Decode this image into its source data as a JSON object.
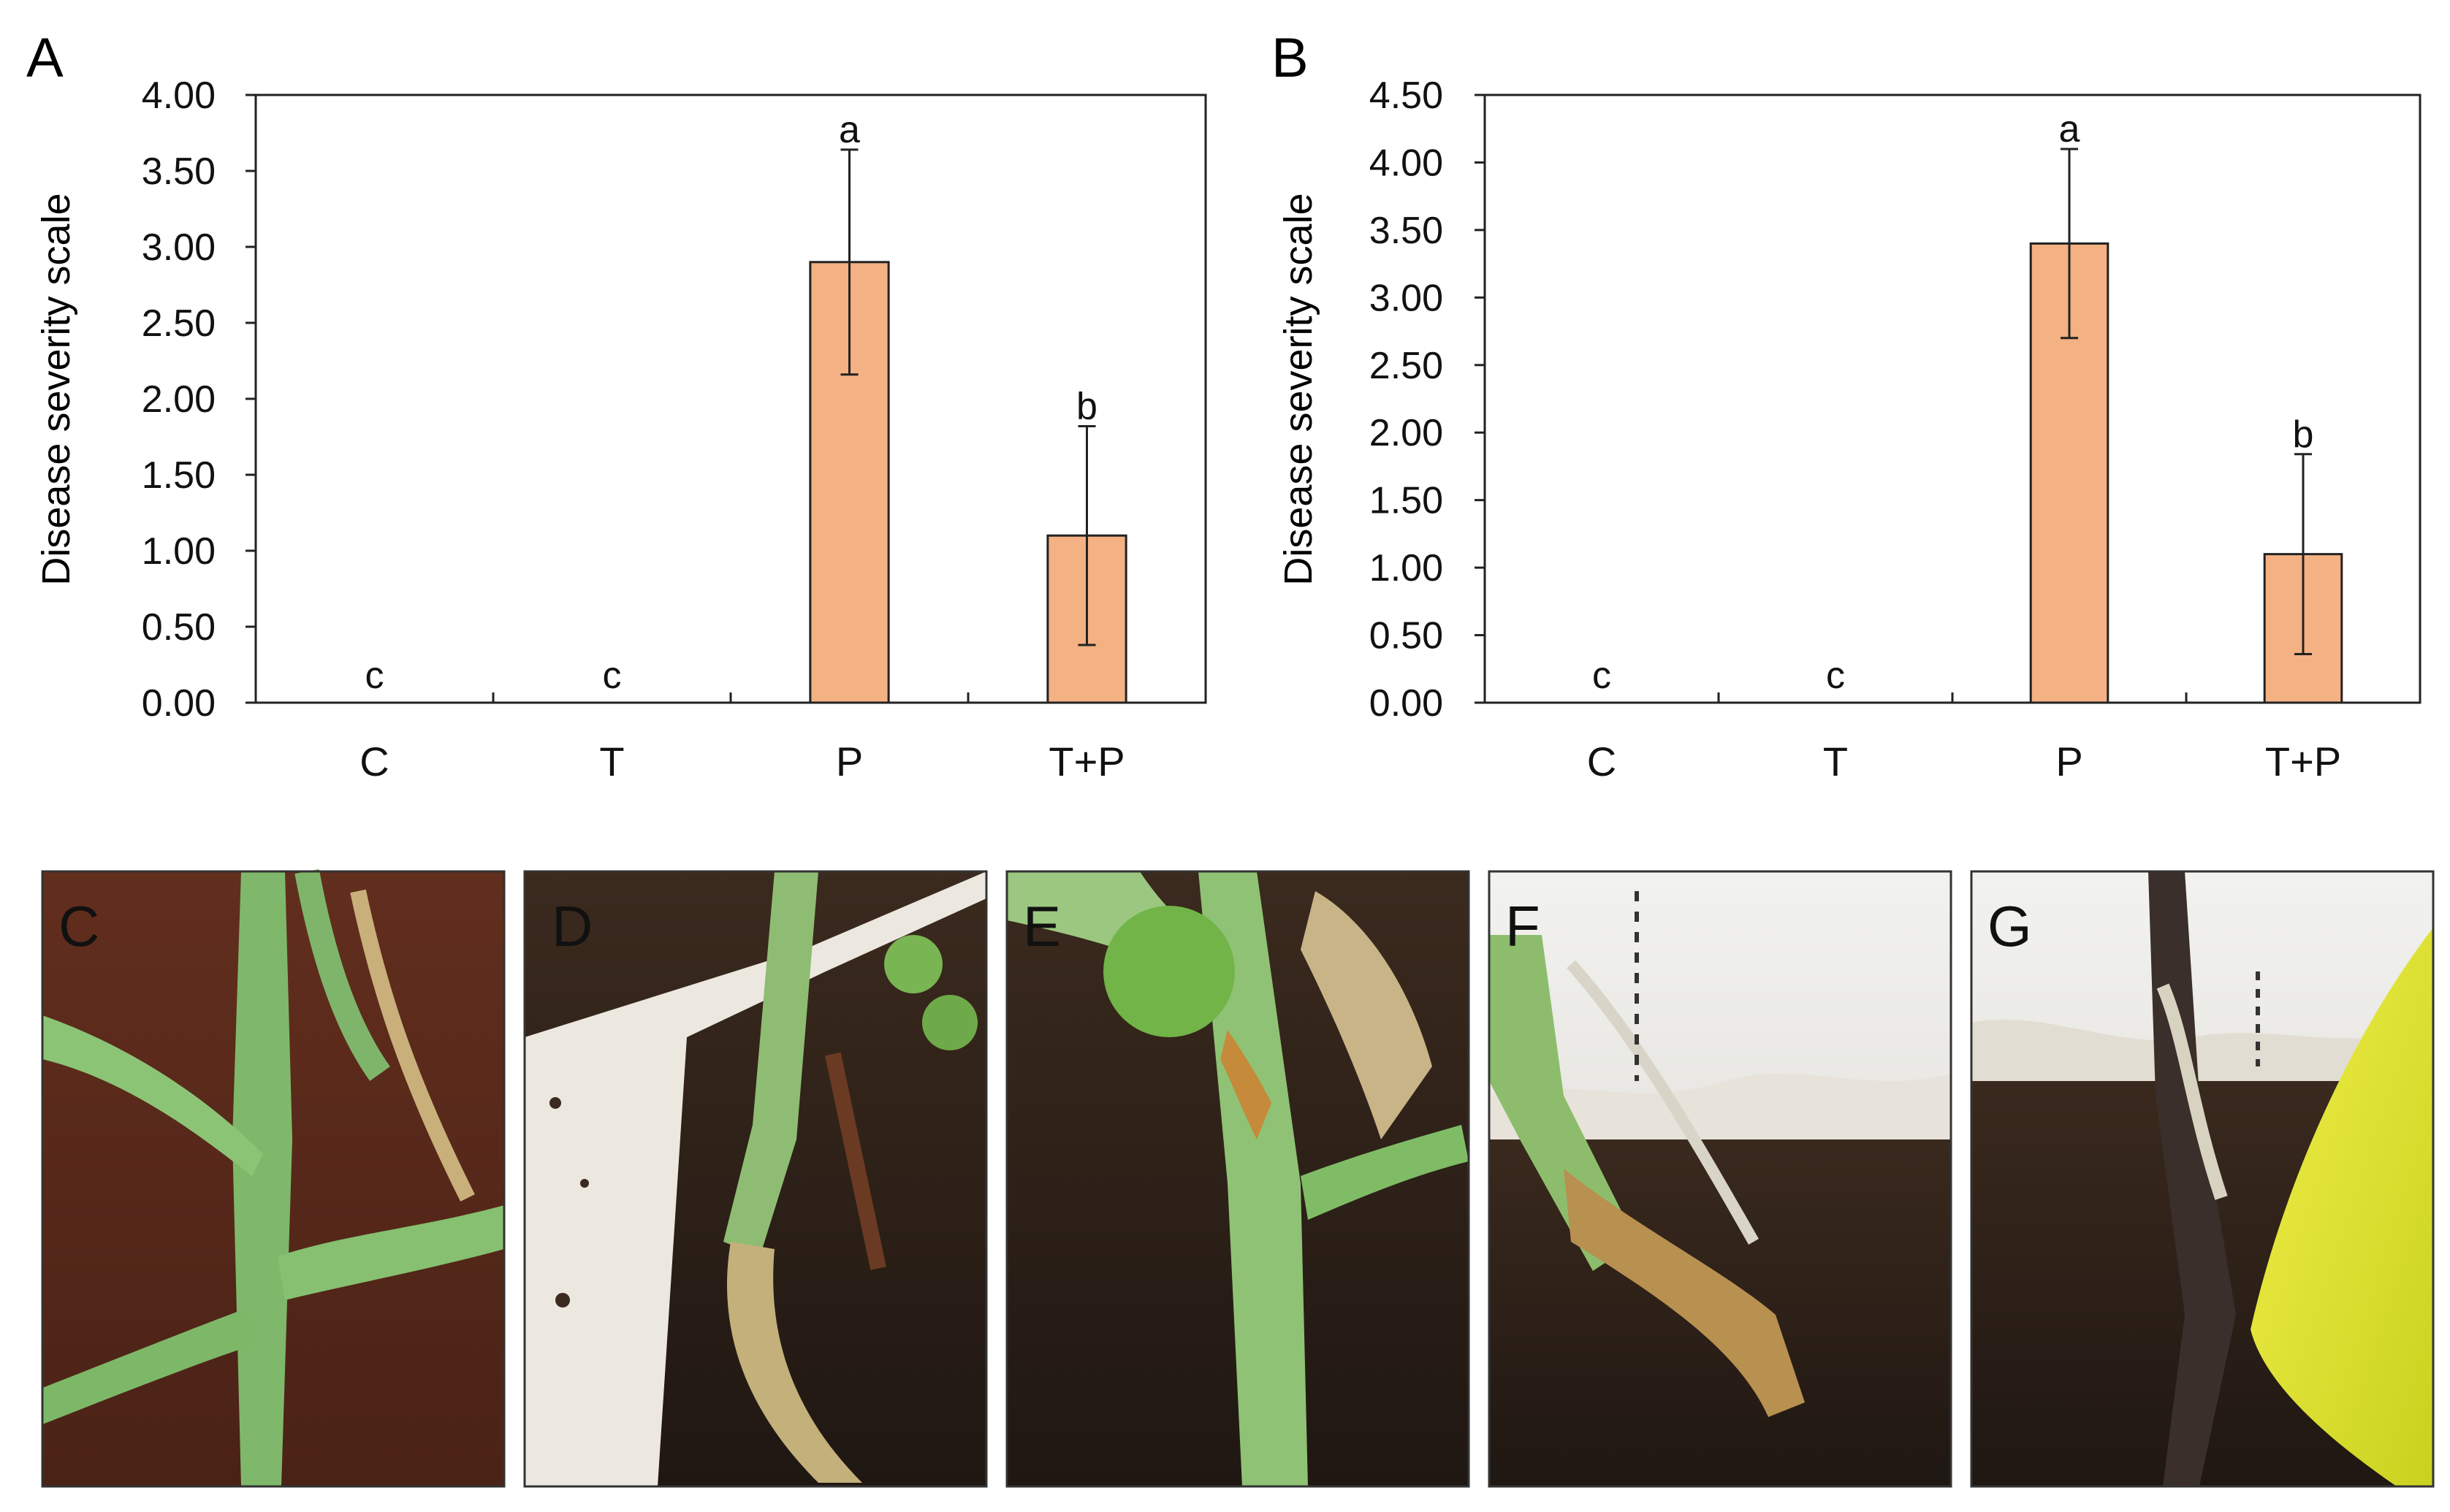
{
  "chart_data": [
    {
      "panel": "A",
      "type": "bar",
      "ylabel": "Disease severity scale",
      "xlabel": "",
      "categories": [
        "C",
        "T",
        "P",
        "T+P"
      ],
      "values": [
        0,
        0,
        2.9,
        1.1
      ],
      "errors": [
        0,
        0,
        0.74,
        0.72
      ],
      "significance": [
        "c",
        "c",
        "a",
        "b"
      ],
      "ylim": [
        0,
        4.0
      ],
      "ytick_values": [
        0,
        0.5,
        1.0,
        1.5,
        2.0,
        2.5,
        3.0,
        3.5,
        4.0
      ],
      "ytick_labels": [
        "0.00",
        "0.50",
        "1.00",
        "1.50",
        "2.00",
        "2.50",
        "3.00",
        "3.50",
        "4.00"
      ],
      "bar_color": "#f4b183",
      "grid": false
    },
    {
      "panel": "B",
      "type": "bar",
      "ylabel": "Disease severity scale",
      "xlabel": "",
      "categories": [
        "C",
        "T",
        "P",
        "T+P"
      ],
      "values": [
        0,
        0,
        3.4,
        1.1
      ],
      "errors": [
        0,
        0,
        0.7,
        0.74
      ],
      "significance": [
        "c",
        "c",
        "a",
        "b"
      ],
      "ylim": [
        0,
        4.5
      ],
      "ytick_values": [
        0,
        0.5,
        1.0,
        1.5,
        2.0,
        2.5,
        3.0,
        3.5,
        4.0,
        4.5
      ],
      "ytick_labels": [
        "0.00",
        "0.50",
        "1.00",
        "1.50",
        "2.00",
        "2.50",
        "3.00",
        "3.50",
        "4.00",
        "4.50"
      ],
      "bar_color": "#f4b183",
      "grid": false
    }
  ],
  "photos": [
    {
      "label": "C"
    },
    {
      "label": "D"
    },
    {
      "label": "E"
    },
    {
      "label": "F"
    },
    {
      "label": "G"
    }
  ]
}
